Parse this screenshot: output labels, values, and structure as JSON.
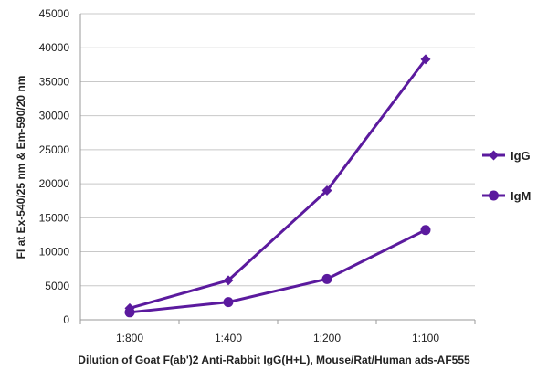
{
  "chart_data": {
    "type": "line",
    "categories": [
      "1:800",
      "1:400",
      "1:200",
      "1:100"
    ],
    "series": [
      {
        "name": "IgG",
        "marker": "diamond",
        "values": [
          1700,
          5800,
          19000,
          38300
        ]
      },
      {
        "name": "IgM",
        "marker": "circle",
        "values": [
          1100,
          2600,
          6000,
          13200
        ]
      }
    ],
    "ylim": [
      0,
      45000
    ],
    "yticks": [
      "0",
      "5000",
      "10000",
      "15000",
      "20000",
      "25000",
      "30000",
      "35000",
      "40000",
      "45000"
    ],
    "ylabel": "FI at Ex-540/25 nm & Em-590/20 nm",
    "xlabel": "Dilution of Goat F(ab')2 Anti-Rabbit IgG(H+L), Mouse/Rat/Human ads-AF555",
    "grid": "horizontal",
    "legend_position": "right",
    "line_color": "#5b1a9e"
  }
}
